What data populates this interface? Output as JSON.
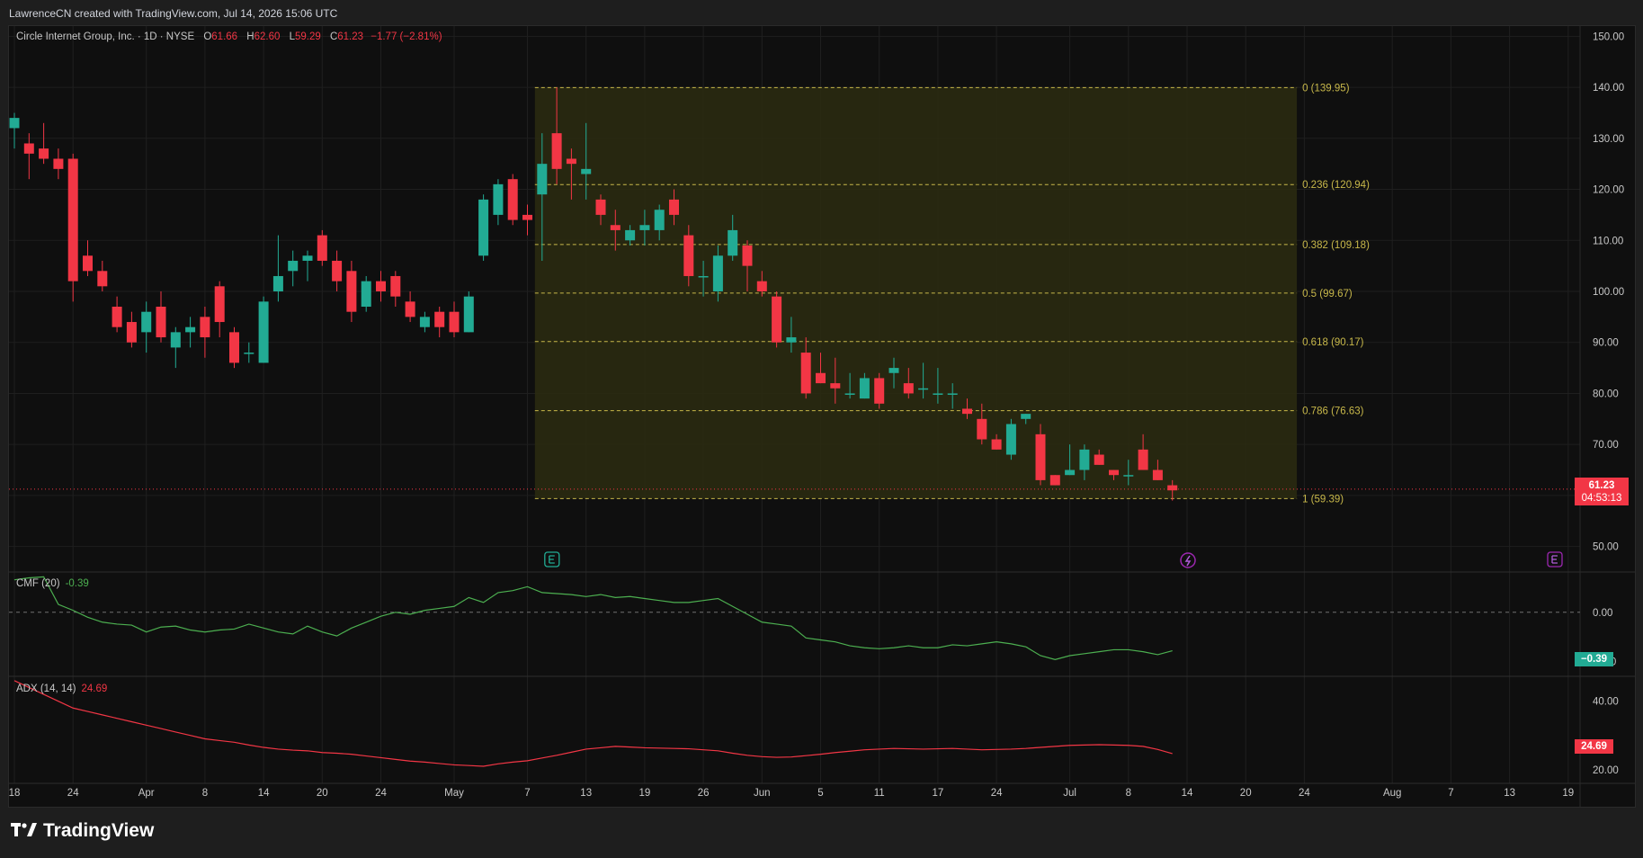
{
  "header": {
    "credit": "LawrenceCN created with TradingView.com, Jul 14, 2026 15:06 UTC"
  },
  "legend": {
    "symbol": "Circle Internet Group, Inc. · 1D · NYSE",
    "open_label": "O",
    "open": "61.66",
    "high_label": "H",
    "high": "62.60",
    "low_label": "L",
    "low": "59.29",
    "close_label": "C",
    "close": "61.23",
    "change": "−1.77 (−2.81%)"
  },
  "last_price": {
    "value": "61.23",
    "countdown": "04:53:13"
  },
  "indicators": {
    "cmf": {
      "name": "CMF (20)",
      "value": "-0.39",
      "tag": "−0.39"
    },
    "adx": {
      "name": "ADX (14, 14)",
      "value": "24.69",
      "tag": "24.69"
    }
  },
  "brand": {
    "logo": "17",
    "name": "TradingView"
  },
  "colors": {
    "up": "#22ab94",
    "down": "#f23645",
    "fib": "#c8b84a",
    "fib_fill": "#2b2b10",
    "cmf_line": "#4caf50",
    "adx_line": "#f23645"
  },
  "chart_data": {
    "type": "candlestick",
    "price_axis": {
      "range": [
        45,
        152
      ],
      "ticks": [
        "50.00",
        "60.00",
        "70.00",
        "80.00",
        "90.00",
        "100.00",
        "110.00",
        "120.00",
        "130.00",
        "140.00",
        "150.00"
      ]
    },
    "time_axis": {
      "labels": [
        {
          "i": 0,
          "t": "18"
        },
        {
          "i": 4,
          "t": "24"
        },
        {
          "i": 9,
          "t": "Apr"
        },
        {
          "i": 13,
          "t": "8"
        },
        {
          "i": 17,
          "t": "14"
        },
        {
          "i": 21,
          "t": "20"
        },
        {
          "i": 25,
          "t": "24"
        },
        {
          "i": 30,
          "t": "May"
        },
        {
          "i": 35,
          "t": "7"
        },
        {
          "i": 39,
          "t": "13"
        },
        {
          "i": 43,
          "t": "19"
        },
        {
          "i": 47,
          "t": "26"
        },
        {
          "i": 51,
          "t": "Jun"
        },
        {
          "i": 55,
          "t": "5"
        },
        {
          "i": 59,
          "t": "11"
        },
        {
          "i": 63,
          "t": "17"
        },
        {
          "i": 67,
          "t": "24"
        },
        {
          "i": 72,
          "t": "Jul"
        },
        {
          "i": 76,
          "t": "8"
        },
        {
          "i": 80,
          "t": "14"
        },
        {
          "i": 84,
          "t": "20"
        },
        {
          "i": 88,
          "t": "24"
        },
        {
          "i": 94,
          "t": "Aug"
        },
        {
          "i": 98,
          "t": "7"
        },
        {
          "i": 102,
          "t": "13"
        },
        {
          "i": 106,
          "t": "19"
        }
      ]
    },
    "candles": [
      [
        132,
        135,
        128,
        134
      ],
      [
        129,
        131,
        122,
        127
      ],
      [
        128,
        133,
        125,
        126
      ],
      [
        126,
        128,
        122,
        124
      ],
      [
        126,
        127,
        98,
        102
      ],
      [
        107,
        110,
        103,
        104
      ],
      [
        104,
        106,
        100,
        101
      ],
      [
        97,
        99,
        92,
        93
      ],
      [
        94,
        96,
        89,
        90
      ],
      [
        92,
        98,
        88,
        96
      ],
      [
        97,
        100,
        90,
        91
      ],
      [
        89,
        93,
        85,
        92
      ],
      [
        92,
        95,
        89,
        93
      ],
      [
        95,
        97,
        87,
        91
      ],
      [
        101,
        102,
        91,
        94
      ],
      [
        92,
        93,
        85,
        86
      ],
      [
        88,
        90,
        86,
        88
      ],
      [
        86,
        99,
        86,
        98
      ],
      [
        100,
        111,
        98,
        103
      ],
      [
        104,
        108,
        101,
        106
      ],
      [
        106,
        108,
        102,
        107
      ],
      [
        111,
        112,
        105,
        106
      ],
      [
        106,
        108,
        100,
        102
      ],
      [
        104,
        106,
        94,
        96
      ],
      [
        97,
        103,
        96,
        102
      ],
      [
        102,
        104,
        98,
        100
      ],
      [
        103,
        104,
        97,
        99
      ],
      [
        98,
        100,
        94,
        95
      ],
      [
        93,
        96,
        92,
        95
      ],
      [
        96,
        97,
        91,
        93
      ],
      [
        96,
        98,
        91,
        92
      ],
      [
        92,
        100,
        92,
        99
      ],
      [
        107,
        119,
        106,
        118
      ],
      [
        115,
        122,
        113,
        121
      ],
      [
        122,
        123,
        113,
        114
      ],
      [
        115,
        117,
        111,
        114
      ],
      [
        119,
        131,
        106,
        125
      ],
      [
        131,
        140,
        121,
        124
      ],
      [
        126,
        128,
        118,
        125
      ],
      [
        123,
        133,
        118,
        124
      ],
      [
        118,
        119,
        113,
        115
      ],
      [
        113,
        116,
        108,
        112
      ],
      [
        110,
        113,
        109,
        112
      ],
      [
        112,
        116,
        109,
        113
      ],
      [
        112,
        117,
        110,
        116
      ],
      [
        118,
        120,
        113,
        115
      ],
      [
        111,
        113,
        101,
        103
      ],
      [
        103,
        106,
        99,
        103
      ],
      [
        100,
        109,
        98,
        107
      ],
      [
        107,
        115,
        106,
        112
      ],
      [
        109,
        110,
        100,
        105
      ],
      [
        102,
        104,
        99,
        100
      ],
      [
        99,
        100,
        89,
        90
      ],
      [
        90,
        95,
        88,
        91
      ],
      [
        88,
        91,
        79,
        80
      ],
      [
        84,
        88,
        82,
        82
      ],
      [
        82,
        87,
        78,
        81
      ],
      [
        80,
        84,
        79,
        80
      ],
      [
        79,
        84,
        79,
        83
      ],
      [
        83,
        84,
        77,
        78
      ],
      [
        84,
        87,
        81,
        85
      ],
      [
        82,
        85,
        79,
        80
      ],
      [
        81,
        86,
        79,
        81
      ],
      [
        80,
        85,
        78,
        80
      ],
      [
        80,
        82,
        77,
        80
      ],
      [
        77,
        79,
        75,
        76
      ],
      [
        75,
        78,
        70,
        71
      ],
      [
        71,
        72,
        69,
        69
      ],
      [
        68,
        75,
        67,
        74
      ],
      [
        75,
        76,
        74,
        76
      ],
      [
        72,
        74,
        62,
        63
      ],
      [
        64,
        64,
        62,
        62
      ],
      [
        64,
        70,
        64,
        65
      ],
      [
        65,
        70,
        63,
        69
      ],
      [
        68,
        69,
        66,
        66
      ],
      [
        65,
        65,
        63,
        64
      ],
      [
        64,
        67,
        62,
        64
      ],
      [
        69,
        72,
        65,
        65
      ],
      [
        65,
        67,
        63,
        63
      ],
      [
        62,
        63,
        59,
        61
      ]
    ],
    "fibonacci": {
      "start_index": 36,
      "end_index": 87,
      "levels": [
        {
          "ratio": "0",
          "price": 139.95,
          "label": "0 (139.95)"
        },
        {
          "ratio": "0.236",
          "price": 120.94,
          "label": "0.236 (120.94)"
        },
        {
          "ratio": "0.382",
          "price": 109.18,
          "label": "0.382 (109.18)"
        },
        {
          "ratio": "0.5",
          "price": 99.67,
          "label": "0.5 (99.67)"
        },
        {
          "ratio": "0.618",
          "price": 90.17,
          "label": "0.618 (90.17)"
        },
        {
          "ratio": "0.786",
          "price": 76.63,
          "label": "0.786 (76.63)"
        },
        {
          "ratio": "1",
          "price": 59.39,
          "label": "1 (59.39)"
        }
      ]
    },
    "cmf": {
      "range": [
        -0.65,
        0.4
      ],
      "ticks": [
        "0.00",
        "-0.50"
      ],
      "values": [
        0.33,
        0.35,
        0.36,
        0.08,
        0.02,
        -0.05,
        -0.1,
        -0.12,
        -0.13,
        -0.2,
        -0.15,
        -0.14,
        -0.18,
        -0.2,
        -0.18,
        -0.17,
        -0.12,
        -0.16,
        -0.2,
        -0.22,
        -0.14,
        -0.2,
        -0.24,
        -0.16,
        -0.1,
        -0.04,
        0.0,
        -0.02,
        0.02,
        0.04,
        0.06,
        0.15,
        0.1,
        0.2,
        0.22,
        0.26,
        0.2,
        0.19,
        0.18,
        0.16,
        0.18,
        0.15,
        0.16,
        0.14,
        0.12,
        0.1,
        0.1,
        0.12,
        0.14,
        0.06,
        -0.02,
        -0.1,
        -0.12,
        -0.14,
        -0.26,
        -0.28,
        -0.3,
        -0.34,
        -0.36,
        -0.37,
        -0.36,
        -0.34,
        -0.36,
        -0.36,
        -0.33,
        -0.34,
        -0.32,
        -0.3,
        -0.32,
        -0.35,
        -0.44,
        -0.48,
        -0.44,
        -0.42,
        -0.4,
        -0.38,
        -0.38,
        -0.4,
        -0.43,
        -0.39
      ]
    },
    "adx": {
      "range": [
        16,
        47
      ],
      "ticks": [
        "40.00",
        "20.00"
      ],
      "values": [
        46,
        44,
        42,
        40,
        38,
        37,
        36,
        35,
        34,
        33,
        32,
        31,
        30,
        29,
        28.5,
        28,
        27.2,
        26.5,
        26,
        25.7,
        25.5,
        25,
        24.8,
        24.5,
        24,
        23.5,
        23,
        22.5,
        22.2,
        21.8,
        21.4,
        21.2,
        21,
        21.7,
        22.2,
        22.6,
        23.4,
        24.2,
        25.1,
        26,
        26.4,
        26.8,
        26.6,
        26.4,
        26.3,
        26.2,
        26.1,
        25.8,
        25.5,
        24.8,
        24.2,
        23.8,
        23.6,
        23.7,
        24.1,
        24.5,
        25,
        25.4,
        25.8,
        26,
        26.2,
        26.1,
        26,
        26.1,
        26.2,
        26,
        25.8,
        25.9,
        26,
        26.2,
        26.5,
        26.8,
        27.1,
        27.2,
        27.3,
        27.2,
        27.1,
        26.8,
        25.9,
        24.69
      ]
    }
  }
}
